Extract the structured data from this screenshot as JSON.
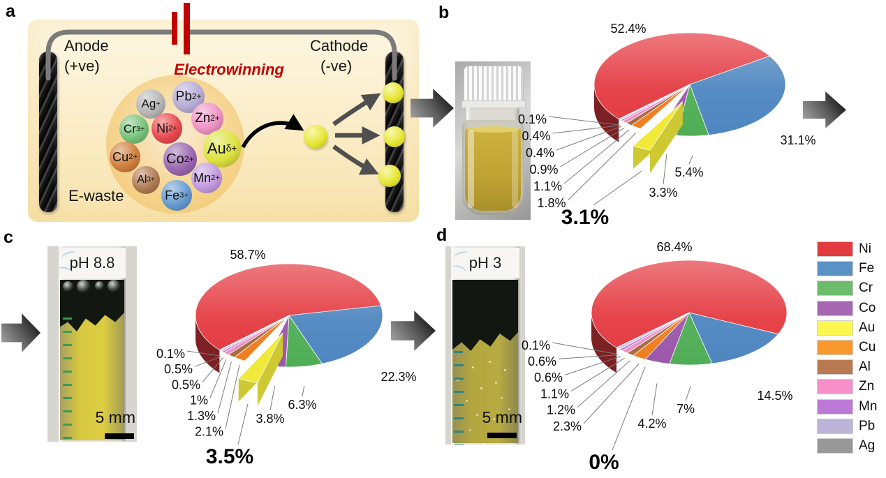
{
  "figure": {
    "panel_letters": {
      "a": "a",
      "b": "b",
      "c": "c",
      "d": "d"
    },
    "panel_a": {
      "anode_line1": "Anode",
      "anode_line2": "(+ve)",
      "cathode_line1": "Cathode",
      "cathode_line2": "(-ve)",
      "process_label": "Electrowinning",
      "ewaste_label": "E-waste",
      "ions": [
        {
          "symbol": "Ag",
          "charge": "+",
          "color": "#b5b5b5"
        },
        {
          "symbol": "Pb",
          "charge": "2+",
          "color": "#b6abd5"
        },
        {
          "symbol": "Zn",
          "charge": "2+",
          "color": "#ef93c6"
        },
        {
          "symbol": "Cr",
          "charge": "3+",
          "color": "#77c27b"
        },
        {
          "symbol": "Ni",
          "charge": "2+",
          "color": "#e8494e"
        },
        {
          "symbol": "Cu",
          "charge": "2+",
          "color": "#d07f3e"
        },
        {
          "symbol": "Co",
          "charge": "2+",
          "color": "#9a67b0"
        },
        {
          "symbol": "Au",
          "charge": "δ+",
          "color": "#dde23e"
        },
        {
          "symbol": "Al",
          "charge": "3+",
          "color": "#b07a52"
        },
        {
          "symbol": "Mn",
          "charge": "2+",
          "color": "#c29add"
        },
        {
          "symbol": "Fe",
          "charge": "3+",
          "color": "#649bd1"
        }
      ]
    },
    "panel_c_vial": {
      "ph_label": "pH 8.8",
      "scale_label": "5 mm"
    },
    "panel_d_vial": {
      "ph_label": "pH 3",
      "scale_label": "5 mm"
    }
  },
  "legend": {
    "position": "right",
    "entries": [
      {
        "label": "Ni",
        "swatch": "#e23b40",
        "slice": "#e43a41"
      },
      {
        "label": "Fe",
        "swatch": "#5b92c6",
        "slice": "#4e86c0"
      },
      {
        "label": "Cr",
        "swatch": "#6cbd6b",
        "slice": "#4fae55"
      },
      {
        "label": "Co",
        "swatch": "#a766b1",
        "slice": "#9c58ac"
      },
      {
        "label": "Au",
        "swatch": "#fbf74e",
        "slice": "#f0e93a"
      },
      {
        "label": "Cu",
        "swatch": "#f8992d",
        "slice": "#f07d1e"
      },
      {
        "label": "Al",
        "swatch": "#b97a51",
        "slice": "#a8693f"
      },
      {
        "label": "Zn",
        "swatch": "#f78fc9",
        "slice": "#f08cc4"
      },
      {
        "label": "Mn",
        "swatch": "#bc79d5",
        "slice": "#c17bd3"
      },
      {
        "label": "Pb",
        "swatch": "#bdb4d9",
        "slice": "#cfc6e2"
      },
      {
        "label": "Ag",
        "swatch": "#989898",
        "slice": "#ababab"
      }
    ]
  },
  "chart_data": [
    {
      "id": "b",
      "type": "pie",
      "style": "3d-exploded",
      "exploded_category": "Au",
      "start_angle_deg": 228,
      "categories": [
        "Ni",
        "Fe",
        "Cr",
        "Co",
        "Au",
        "Cu",
        "Al",
        "Zn",
        "Mn",
        "Pb",
        "Ag"
      ],
      "values": [
        52.4,
        31.1,
        5.4,
        3.3,
        3.1,
        1.8,
        1.1,
        0.9,
        0.4,
        0.4,
        0.1
      ],
      "labels": [
        "52.4%",
        "31.1%",
        "5.4%",
        "3.3%",
        "3.1%",
        "1.8%",
        "1.1%",
        "0.9%",
        "0.4%",
        "0.4%",
        "0.1%"
      ]
    },
    {
      "id": "c",
      "type": "pie",
      "style": "3d-exploded",
      "exploded_category": "Au",
      "start_angle_deg": 228,
      "categories": [
        "Ni",
        "Fe",
        "Cr",
        "Co",
        "Au",
        "Cu",
        "Al",
        "Zn",
        "Mn",
        "Pb",
        "Ag"
      ],
      "values": [
        58.7,
        22.3,
        6.3,
        3.8,
        3.5,
        2.1,
        1.3,
        1.0,
        0.5,
        0.5,
        0.1
      ],
      "labels": [
        "58.7%",
        "22.3%",
        "6.3%",
        "3.8%",
        "3.5%",
        "2.1%",
        "1.3%",
        "1%",
        "0.5%",
        "0.5%",
        "0.1%"
      ]
    },
    {
      "id": "d",
      "type": "pie",
      "style": "3d",
      "exploded_category": "Au",
      "start_angle_deg": 228,
      "categories": [
        "Ni",
        "Fe",
        "Cr",
        "Co",
        "Au",
        "Cu",
        "Al",
        "Zn",
        "Mn",
        "Pb",
        "Ag"
      ],
      "values": [
        68.4,
        14.5,
        7.0,
        4.2,
        0.0,
        2.3,
        1.2,
        1.1,
        0.6,
        0.6,
        0.1
      ],
      "labels": [
        "68.4%",
        "14.5%",
        "7%",
        "4.2%",
        "0%",
        "2.3%",
        "1.2%",
        "1.1%",
        "0.6%",
        "0.6%",
        "0.1%"
      ]
    }
  ]
}
